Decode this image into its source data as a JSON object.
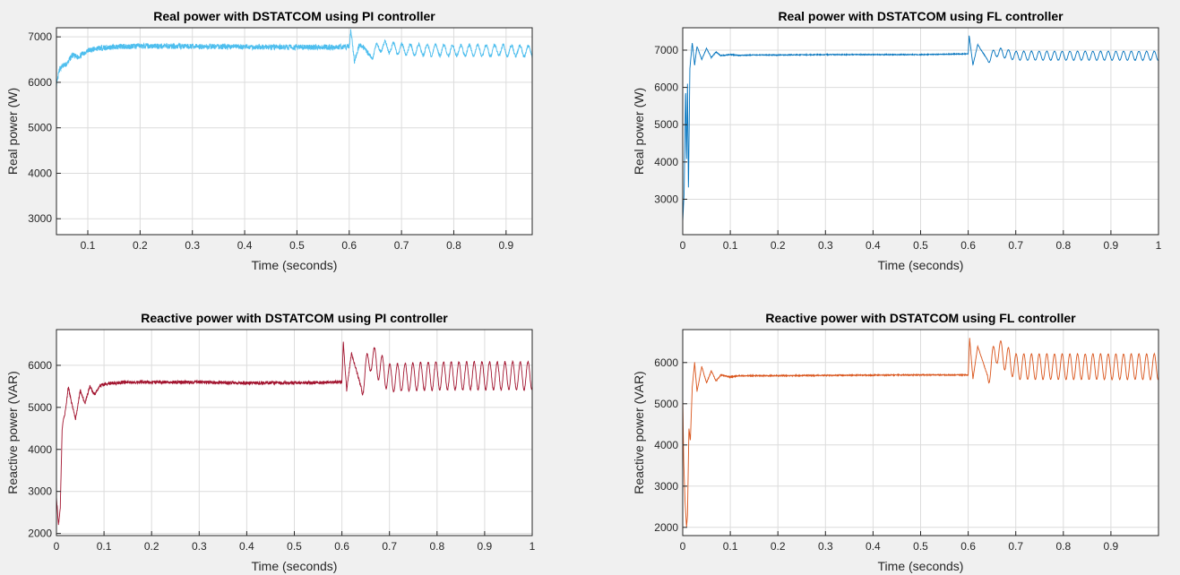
{
  "chart_data": [
    {
      "type": "line",
      "title": "Real power with DSTATCOM using PI controller",
      "xlabel": "Time (seconds)",
      "ylabel": "Real power (W)",
      "xlim": [
        0.04,
        0.95
      ],
      "ylim": [
        2650,
        7200
      ],
      "xticks": [
        0.1,
        0.2,
        0.3,
        0.4,
        0.5,
        0.6,
        0.7,
        0.8,
        0.9
      ],
      "yticks": [
        3000,
        4000,
        5000,
        6000,
        7000
      ],
      "grid": true,
      "color": "#4dbeee",
      "series": [
        {
          "x": [
            0.04,
            0.045,
            0.05,
            0.06,
            0.07,
            0.08,
            0.1,
            0.12,
            0.15,
            0.2,
            0.3,
            0.4,
            0.5,
            0.6,
            0.603,
            0.61,
            0.62,
            0.64,
            0.66,
            0.7,
            0.8,
            0.9,
            0.95
          ],
          "y": [
            5900,
            6250,
            6350,
            6400,
            6600,
            6550,
            6700,
            6750,
            6780,
            6800,
            6790,
            6780,
            6770,
            6780,
            7150,
            6450,
            6850,
            6600,
            6800,
            6720,
            6700,
            6700,
            6680
          ],
          "noise_before": 60,
          "osc_after": 120,
          "transition_x": 0.6
        }
      ]
    },
    {
      "type": "line",
      "title": "Real power with DSTATCOM using FL controller",
      "xlabel": "Time (seconds)",
      "ylabel": "Real power (W)",
      "xlim": [
        0,
        1
      ],
      "ylim": [
        2050,
        7600
      ],
      "xticks": [
        0,
        0.1,
        0.2,
        0.3,
        0.4,
        0.5,
        0.6,
        0.7,
        0.8,
        0.9,
        1
      ],
      "yticks": [
        3000,
        4000,
        5000,
        6000,
        7000
      ],
      "grid": true,
      "color": "#0072bd",
      "series": [
        {
          "x": [
            0,
            0.003,
            0.006,
            0.008,
            0.01,
            0.012,
            0.015,
            0.02,
            0.025,
            0.03,
            0.04,
            0.05,
            0.06,
            0.07,
            0.08,
            0.1,
            0.12,
            0.15,
            0.2,
            0.3,
            0.5,
            0.6,
            0.602,
            0.61,
            0.62,
            0.64,
            0.66,
            0.7,
            0.8,
            0.9,
            1.0
          ],
          "y": [
            2400,
            3200,
            6000,
            4000,
            6100,
            3200,
            6500,
            7200,
            6600,
            7100,
            6750,
            7050,
            6800,
            6950,
            6850,
            6880,
            6860,
            6870,
            6870,
            6880,
            6880,
            6900,
            7400,
            6600,
            7150,
            6750,
            6950,
            6850,
            6850,
            6850,
            6850
          ],
          "noise_before": 10,
          "osc_after": 120,
          "transition_x": 0.6
        }
      ]
    },
    {
      "type": "line",
      "title": "Reactive power with DSTATCOM using PI controller",
      "xlabel": "Time (seconds)",
      "ylabel": "Reactive power (VAR)",
      "xlim": [
        0,
        1
      ],
      "ylim": [
        1950,
        6850
      ],
      "xticks": [
        0,
        0.1,
        0.2,
        0.3,
        0.4,
        0.5,
        0.6,
        0.7,
        0.8,
        0.9,
        1
      ],
      "yticks": [
        2000,
        3000,
        4000,
        5000,
        6000
      ],
      "grid": true,
      "color": "#a2142f",
      "series": [
        {
          "x": [
            0,
            0.004,
            0.008,
            0.012,
            0.015,
            0.02,
            0.025,
            0.03,
            0.04,
            0.05,
            0.06,
            0.07,
            0.08,
            0.09,
            0.1,
            0.12,
            0.15,
            0.2,
            0.3,
            0.4,
            0.5,
            0.6,
            0.603,
            0.61,
            0.62,
            0.64,
            0.66,
            0.7,
            0.8,
            0.9,
            1.0
          ],
          "y": [
            2900,
            2200,
            2600,
            4500,
            4700,
            5000,
            5500,
            5200,
            4700,
            5400,
            5100,
            5500,
            5300,
            5500,
            5550,
            5580,
            5600,
            5600,
            5600,
            5580,
            5580,
            5600,
            6550,
            5400,
            6300,
            5500,
            6200,
            5700,
            5750,
            5750,
            5750
          ],
          "noise_before": 40,
          "osc_after": 330,
          "transition_x": 0.6
        }
      ]
    },
    {
      "type": "line",
      "title": "Reactive power with DSTATCOM using FL controller",
      "xlabel": "Time (seconds)",
      "ylabel": "Reactive power (VAR)",
      "xlim": [
        0,
        1
      ],
      "ylim": [
        1800,
        6800
      ],
      "xticks": [
        0,
        0.1,
        0.2,
        0.3,
        0.4,
        0.5,
        0.6,
        0.7,
        0.8,
        0.9
      ],
      "yticks": [
        2000,
        3000,
        4000,
        5000,
        6000
      ],
      "grid": true,
      "color": "#d95319",
      "series": [
        {
          "x": [
            0,
            0.002,
            0.005,
            0.008,
            0.01,
            0.013,
            0.016,
            0.02,
            0.025,
            0.03,
            0.04,
            0.05,
            0.06,
            0.07,
            0.08,
            0.1,
            0.12,
            0.15,
            0.2,
            0.3,
            0.5,
            0.6,
            0.603,
            0.61,
            0.62,
            0.64,
            0.66,
            0.7,
            0.8,
            0.9,
            1.0
          ],
          "y": [
            5200,
            3600,
            2600,
            2000,
            2300,
            4400,
            4100,
            5400,
            6000,
            5300,
            5900,
            5500,
            5800,
            5550,
            5700,
            5650,
            5680,
            5680,
            5680,
            5690,
            5700,
            5700,
            6600,
            5600,
            6400,
            5700,
            6300,
            5900,
            5900,
            5900,
            5900
          ],
          "noise_before": 12,
          "osc_after": 310,
          "transition_x": 0.6
        }
      ]
    }
  ]
}
